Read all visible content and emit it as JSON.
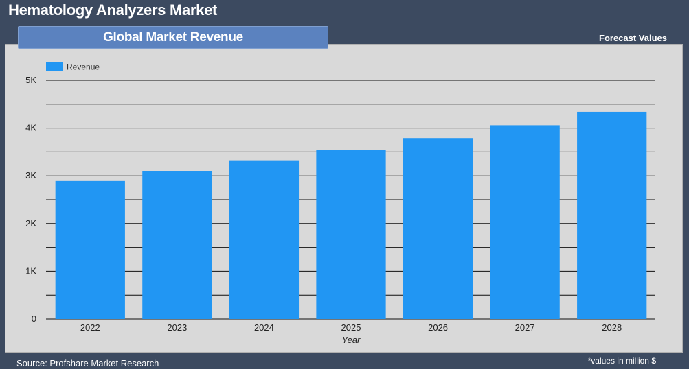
{
  "header": {
    "title": "Hematology Analyzers Market",
    "tab_label": "Global Market Revenue",
    "forecast_label": "Forecast Values"
  },
  "footer": {
    "source": "Source: Profshare Market Research",
    "note": "*values in million $"
  },
  "colors": {
    "bar": "#2196f3",
    "background": "#3c4a60",
    "panel": "#d9d9d9",
    "tab": "#5b82bf"
  },
  "chart_data": {
    "type": "bar",
    "categories": [
      "2022",
      "2023",
      "2024",
      "2025",
      "2026",
      "2027",
      "2028"
    ],
    "series": [
      {
        "name": "Revenue",
        "values": [
          2890,
          3090,
          3310,
          3540,
          3790,
          4060,
          4340
        ]
      }
    ],
    "xlabel": "Year",
    "ylabel": "",
    "ylim": [
      0,
      5000
    ],
    "yticks": [
      0,
      1000,
      2000,
      3000,
      4000,
      5000
    ],
    "ytick_labels": [
      "0",
      "1K",
      "2K",
      "3K",
      "4K",
      "5K"
    ],
    "grid": true,
    "legend": "top-left"
  }
}
